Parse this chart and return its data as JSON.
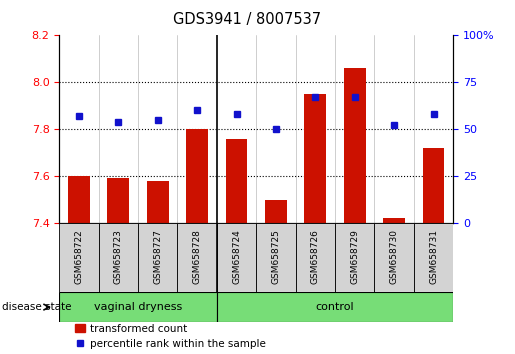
{
  "title": "GDS3941 / 8007537",
  "samples": [
    "GSM658722",
    "GSM658723",
    "GSM658727",
    "GSM658728",
    "GSM658724",
    "GSM658725",
    "GSM658726",
    "GSM658729",
    "GSM658730",
    "GSM658731"
  ],
  "red_values": [
    7.6,
    7.59,
    7.58,
    7.8,
    7.76,
    7.5,
    7.95,
    8.06,
    7.42,
    7.72
  ],
  "blue_values": [
    57,
    54,
    55,
    60,
    58,
    50,
    67,
    67,
    52,
    58
  ],
  "ylim_left": [
    7.4,
    8.2
  ],
  "ylim_right": [
    0,
    100
  ],
  "yticks_left": [
    7.4,
    7.6,
    7.8,
    8.0,
    8.2
  ],
  "yticks_right": [
    0,
    25,
    50,
    75,
    100
  ],
  "group_boundary": 4,
  "group1_label": "vaginal dryness",
  "group2_label": "control",
  "group_color": "#77DD77",
  "bar_color": "#CC1100",
  "dot_color": "#1111CC",
  "bar_bottom": 7.4,
  "cell_color": "#D3D3D3",
  "legend_red_label": "transformed count",
  "legend_blue_label": "percentile rank within the sample"
}
